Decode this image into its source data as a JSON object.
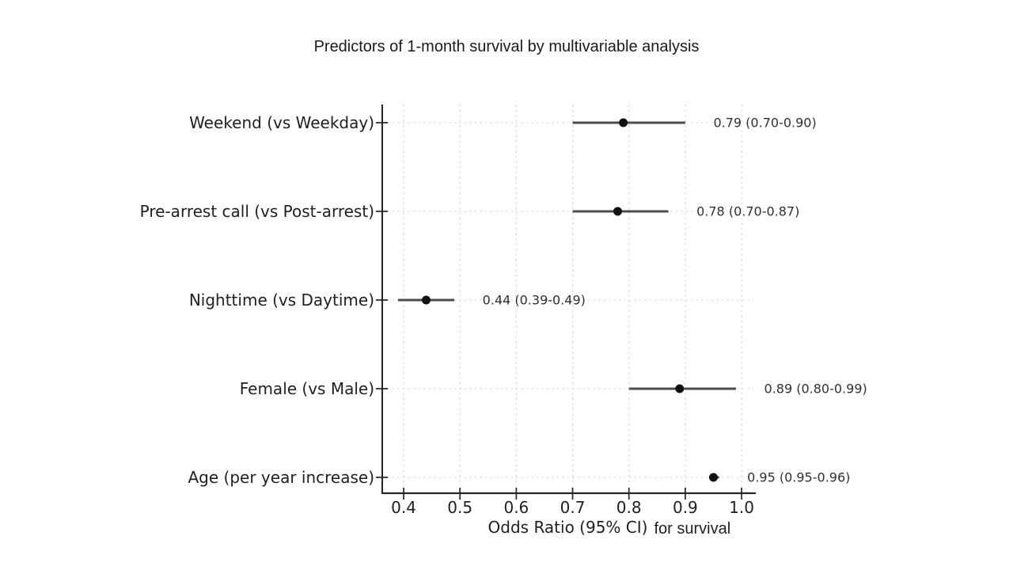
{
  "title": "Predictors of 1-month survival by multivariable analysis",
  "chart_data": {
    "type": "scatter",
    "variant": "forest-plot",
    "title": "Predictors of 1-month survival by multivariable analysis",
    "xlabel": "Odds Ratio (95% CI)",
    "xlabel_suffix": "for survival",
    "xlim": [
      0.362,
      1.021
    ],
    "xticks": [
      0.4,
      0.5,
      0.6,
      0.7,
      0.8,
      0.9,
      1.0
    ],
    "xtick_labels": [
      "0.4",
      "0.5",
      "0.6",
      "0.7",
      "0.8",
      "0.9",
      "1.0"
    ],
    "grid": "dashed",
    "legend": "none",
    "rows": [
      {
        "label": "Weekend (vs Weekday)",
        "or": 0.79,
        "ci_low": 0.7,
        "ci_high": 0.9,
        "annotation": "0.79 (0.70-0.90)"
      },
      {
        "label": "Pre-arrest call (vs Post-arrest)",
        "or": 0.78,
        "ci_low": 0.7,
        "ci_high": 0.87,
        "annotation": "0.78 (0.70-0.87)"
      },
      {
        "label": "Nighttime (vs Daytime)",
        "or": 0.44,
        "ci_low": 0.39,
        "ci_high": 0.49,
        "annotation": "0.44 (0.39-0.49)"
      },
      {
        "label": "Female (vs Male)",
        "or": 0.89,
        "ci_low": 0.8,
        "ci_high": 0.99,
        "annotation": "0.89 (0.80-0.99)"
      },
      {
        "label": "Age (per year increase)",
        "or": 0.95,
        "ci_low": 0.95,
        "ci_high": 0.96,
        "annotation": "0.95 (0.95-0.96)"
      }
    ],
    "colors": {
      "background": "#ffffff",
      "spine": "#262626",
      "tick": "#262626",
      "grid": "#d6d6d6",
      "ci_line": "#4d4d4d",
      "marker": "#111111",
      "label_text": "#1f1f1f",
      "annotation_text": "#303030"
    }
  }
}
